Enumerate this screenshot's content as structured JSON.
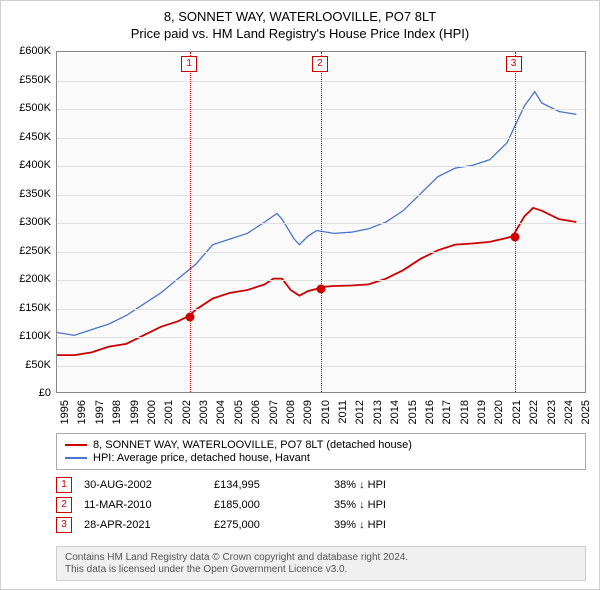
{
  "header": {
    "title": "8, SONNET WAY, WATERLOOVILLE, PO7 8LT",
    "subtitle": "Price paid vs. HM Land Registry's House Price Index (HPI)"
  },
  "chart": {
    "type": "line",
    "plot_bg": "#fafafa",
    "grid_color": "#e0e0e0",
    "axis_color": "#888888",
    "x_min": 1995,
    "x_max": 2025.5,
    "y_min": 0,
    "y_max": 600000,
    "y_ticks": [
      0,
      50000,
      100000,
      150000,
      200000,
      250000,
      300000,
      350000,
      400000,
      450000,
      500000,
      550000,
      600000
    ],
    "y_tick_labels": [
      "£0",
      "£50K",
      "£100K",
      "£150K",
      "£200K",
      "£250K",
      "£300K",
      "£350K",
      "£400K",
      "£450K",
      "£500K",
      "£550K",
      "£600K"
    ],
    "x_ticks": [
      1995,
      1996,
      1997,
      1998,
      1999,
      2000,
      2001,
      2002,
      2003,
      2004,
      2005,
      2006,
      2007,
      2008,
      2009,
      2010,
      2011,
      2012,
      2013,
      2014,
      2015,
      2016,
      2017,
      2018,
      2019,
      2020,
      2021,
      2022,
      2023,
      2024,
      2025
    ],
    "series": [
      {
        "name": "property",
        "color": "#cc0000",
        "width": 1.8,
        "label": "8, SONNET WAY, WATERLOOVILLE, PO7 8LT (detached house)",
        "points": [
          [
            1995,
            65000
          ],
          [
            1996,
            65000
          ],
          [
            1997,
            70000
          ],
          [
            1998,
            80000
          ],
          [
            1999,
            85000
          ],
          [
            2000,
            100000
          ],
          [
            2001,
            115000
          ],
          [
            2002,
            125000
          ],
          [
            2002.66,
            134995
          ],
          [
            2003,
            145000
          ],
          [
            2004,
            165000
          ],
          [
            2005,
            175000
          ],
          [
            2006,
            180000
          ],
          [
            2007,
            190000
          ],
          [
            2007.5,
            200000
          ],
          [
            2008,
            200000
          ],
          [
            2008.5,
            180000
          ],
          [
            2009,
            170000
          ],
          [
            2009.5,
            178000
          ],
          [
            2010,
            182000
          ],
          [
            2010.19,
            185000
          ],
          [
            2011,
            187000
          ],
          [
            2012,
            188000
          ],
          [
            2013,
            190000
          ],
          [
            2014,
            200000
          ],
          [
            2015,
            215000
          ],
          [
            2016,
            235000
          ],
          [
            2017,
            250000
          ],
          [
            2018,
            260000
          ],
          [
            2019,
            262000
          ],
          [
            2020,
            265000
          ],
          [
            2021,
            272000
          ],
          [
            2021.33,
            275000
          ],
          [
            2022,
            310000
          ],
          [
            2022.5,
            325000
          ],
          [
            2023,
            320000
          ],
          [
            2024,
            305000
          ],
          [
            2025,
            300000
          ]
        ]
      },
      {
        "name": "hpi",
        "color": "#4a74c9",
        "width": 1.3,
        "label": "HPI: Average price, detached house, Havant",
        "points": [
          [
            1995,
            105000
          ],
          [
            1996,
            100000
          ],
          [
            1997,
            110000
          ],
          [
            1998,
            120000
          ],
          [
            1999,
            135000
          ],
          [
            2000,
            155000
          ],
          [
            2001,
            175000
          ],
          [
            2002,
            200000
          ],
          [
            2003,
            225000
          ],
          [
            2004,
            260000
          ],
          [
            2005,
            270000
          ],
          [
            2006,
            280000
          ],
          [
            2007,
            300000
          ],
          [
            2007.7,
            315000
          ],
          [
            2008,
            305000
          ],
          [
            2008.7,
            270000
          ],
          [
            2009,
            260000
          ],
          [
            2009.5,
            275000
          ],
          [
            2010,
            285000
          ],
          [
            2011,
            280000
          ],
          [
            2012,
            282000
          ],
          [
            2013,
            288000
          ],
          [
            2014,
            300000
          ],
          [
            2015,
            320000
          ],
          [
            2016,
            350000
          ],
          [
            2017,
            380000
          ],
          [
            2018,
            395000
          ],
          [
            2019,
            400000
          ],
          [
            2020,
            410000
          ],
          [
            2021,
            440000
          ],
          [
            2022,
            505000
          ],
          [
            2022.6,
            530000
          ],
          [
            2023,
            510000
          ],
          [
            2024,
            495000
          ],
          [
            2025,
            490000
          ]
        ]
      }
    ],
    "vlines": [
      {
        "x": 2002.66,
        "color": "#cc0000"
      },
      {
        "x": 2010.19,
        "color": "#cc0000"
      },
      {
        "x": 2021.33,
        "color": "#cc0000"
      }
    ],
    "markers": [
      {
        "n": "1",
        "x": 2002.66,
        "y": 134995,
        "color": "#cc0000"
      },
      {
        "n": "2",
        "x": 2010.19,
        "y": 185000,
        "color": "#cc0000"
      },
      {
        "n": "3",
        "x": 2021.33,
        "y": 275000,
        "color": "#cc0000"
      }
    ]
  },
  "legend": {
    "rows": [
      {
        "color": "#cc0000",
        "label": "8, SONNET WAY, WATERLOOVILLE, PO7 8LT (detached house)"
      },
      {
        "color": "#4a74c9",
        "label": "HPI: Average price, detached house, Havant"
      }
    ]
  },
  "events": [
    {
      "n": "1",
      "date": "30-AUG-2002",
      "price": "£134,995",
      "delta": "38% ↓ HPI"
    },
    {
      "n": "2",
      "date": "11-MAR-2010",
      "price": "£185,000",
      "delta": "35% ↓ HPI"
    },
    {
      "n": "3",
      "date": "28-APR-2021",
      "price": "£275,000",
      "delta": "39% ↓ HPI"
    }
  ],
  "footer": {
    "line1": "Contains HM Land Registry data © Crown copyright and database right 2024.",
    "line2": "This data is licensed under the Open Government Licence v3.0."
  }
}
